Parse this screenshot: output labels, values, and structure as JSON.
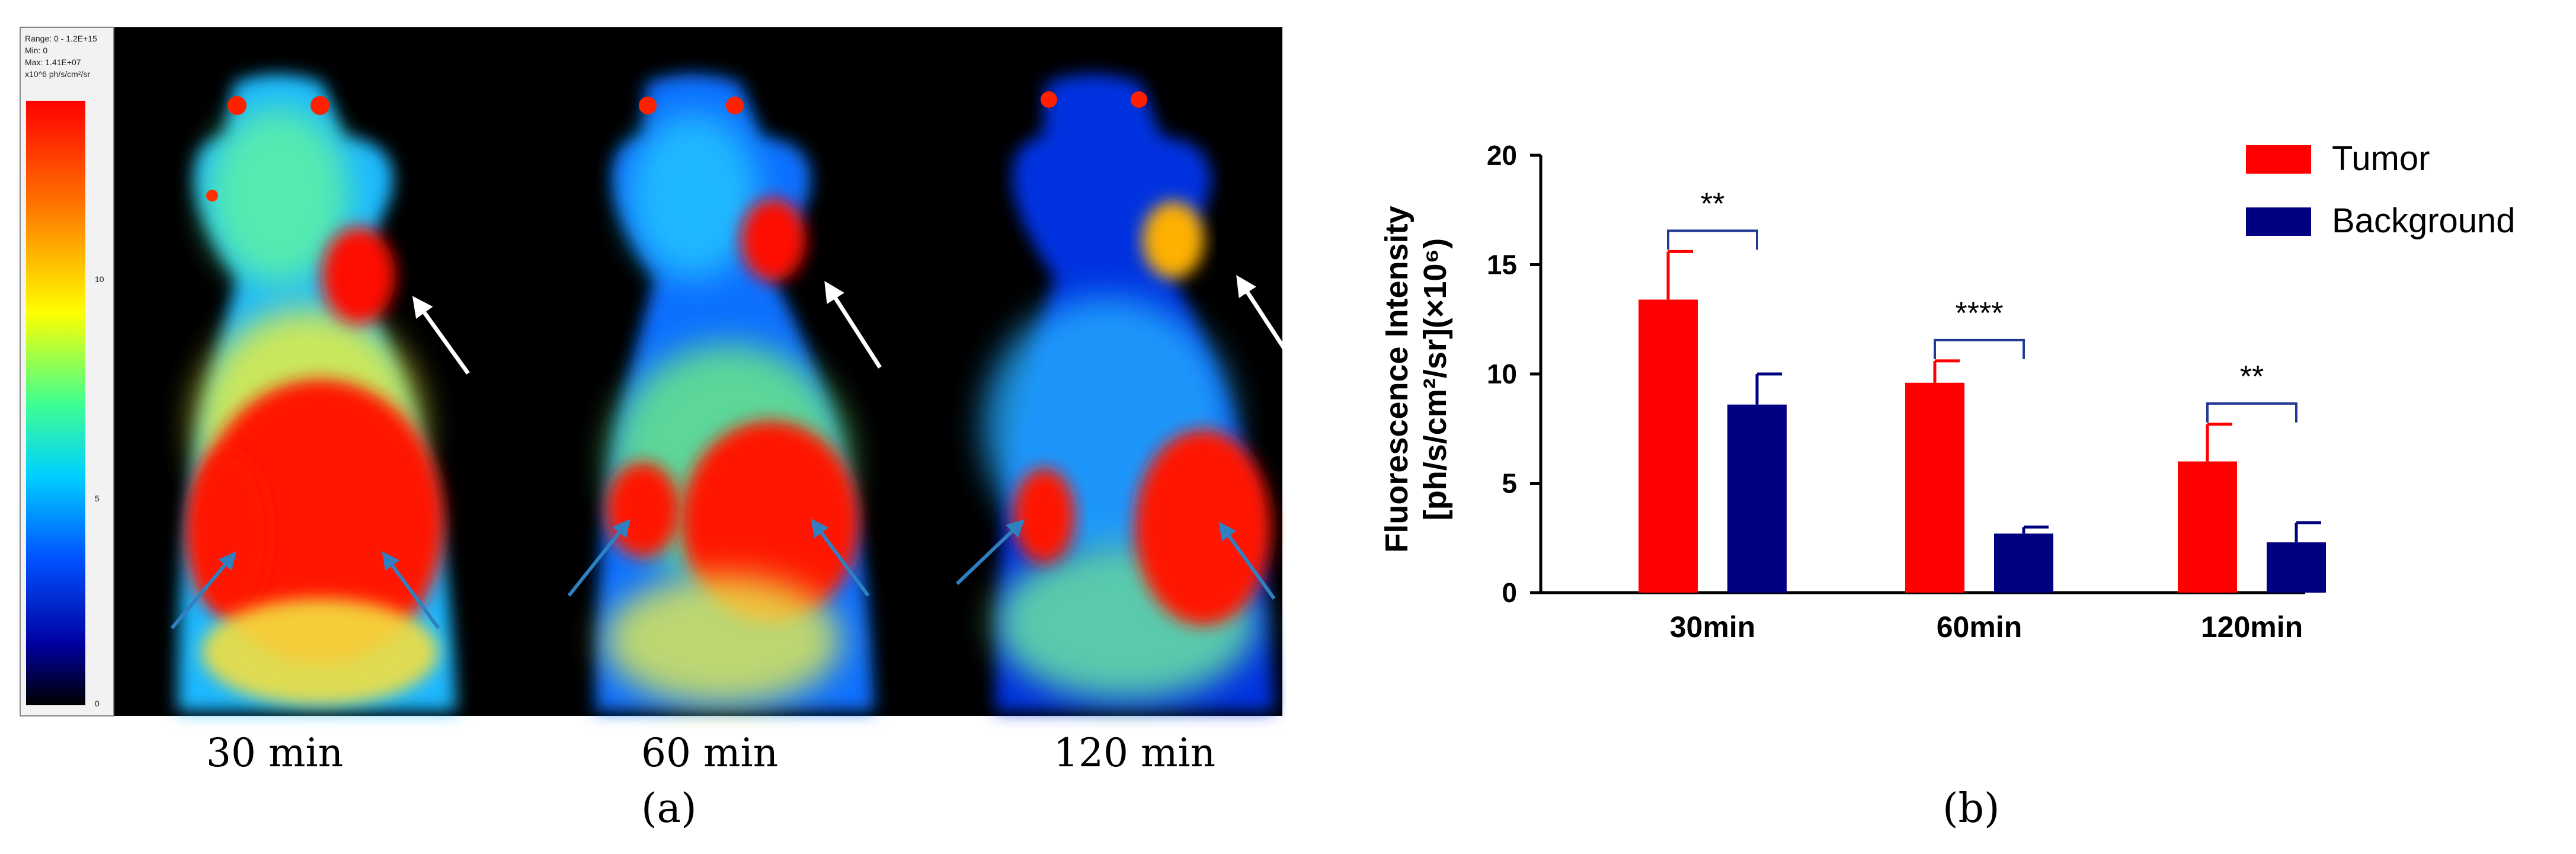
{
  "panel_a": {
    "colorbar": {
      "range_text": "Range: 0 - 1.2E+15",
      "min_text": "Min: 0",
      "max_text": "Max: 1.41E+07",
      "unit_text": "x10^6 ph/s/cm²/sr",
      "ticks": [
        "10",
        "5",
        "0"
      ]
    },
    "timepoints": [
      "30 min",
      "60 min",
      "120 min"
    ],
    "label": "(a)",
    "colors": {
      "tumor_arrow": "#ffffff",
      "organ_arrow": "#2f7fc1"
    }
  },
  "panel_b_label": "(b)",
  "chart_data": {
    "type": "bar",
    "categories": [
      "30min",
      "60min",
      "120min"
    ],
    "series": [
      {
        "name": "Tumor",
        "color": "#ff0000",
        "values": [
          13.4,
          9.6,
          6.0
        ],
        "errors": [
          2.2,
          1.0,
          1.7
        ]
      },
      {
        "name": "Background",
        "color": "#000080",
        "values": [
          8.6,
          2.7,
          2.3
        ],
        "errors": [
          1.4,
          0.3,
          0.9
        ]
      }
    ],
    "ylabel_line1": "Fluorescence Intensity",
    "ylabel_line2": "[ph/s/cm²/sr](×10⁶)",
    "ylim": [
      0,
      20
    ],
    "yticks": [
      "0",
      "5",
      "10",
      "15",
      "20"
    ],
    "significance": [
      "**",
      "****",
      "**"
    ],
    "legend_position": "top-right",
    "grid": false
  }
}
